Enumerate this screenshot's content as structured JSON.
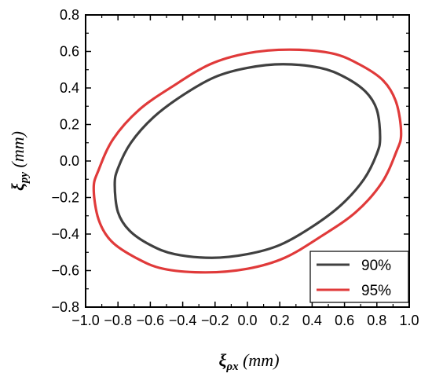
{
  "chart_data": {
    "type": "line",
    "title": "",
    "xlabel": {
      "symbol": "ξ",
      "subscript": "ρx",
      "unit": "(mm)"
    },
    "ylabel": {
      "symbol": "ξ",
      "subscript": "py",
      "unit": "(mm)"
    },
    "xlim": [
      -1.0,
      1.0
    ],
    "ylim": [
      -0.8,
      0.8
    ],
    "xticks": [
      "−1.0",
      "−0.8",
      "−0.6",
      "−0.4",
      "−0.2",
      "0.0",
      "0.2",
      "0.4",
      "0.6",
      "0.8",
      "1.0"
    ],
    "yticks": [
      "0.8",
      "0.6",
      "0.4",
      "0.2",
      "0.0",
      "−0.2",
      "−0.4",
      "−0.6",
      "−0.8"
    ],
    "grid": false,
    "legend_placement": "bottom-right",
    "series": [
      {
        "name": "90%",
        "color": "#404040",
        "shape": "ellipse",
        "center": [
          0.0,
          0.0
        ],
        "x_extent": [
          -0.82,
          0.82
        ],
        "y_extent": [
          -0.53,
          0.53
        ],
        "points": [
          [
            0.82,
            0.13
          ],
          [
            0.8,
            0.28
          ],
          [
            0.73,
            0.38
          ],
          [
            0.6,
            0.46
          ],
          [
            0.45,
            0.51
          ],
          [
            0.22,
            0.53
          ],
          [
            0.0,
            0.51
          ],
          [
            -0.2,
            0.46
          ],
          [
            -0.4,
            0.36
          ],
          [
            -0.58,
            0.24
          ],
          [
            -0.72,
            0.1
          ],
          [
            -0.8,
            -0.04
          ],
          [
            -0.82,
            -0.13
          ],
          [
            -0.8,
            -0.28
          ],
          [
            -0.73,
            -0.38
          ],
          [
            -0.6,
            -0.46
          ],
          [
            -0.45,
            -0.51
          ],
          [
            -0.22,
            -0.53
          ],
          [
            0.0,
            -0.51
          ],
          [
            0.2,
            -0.46
          ],
          [
            0.4,
            -0.36
          ],
          [
            0.58,
            -0.24
          ],
          [
            0.72,
            -0.1
          ],
          [
            0.8,
            0.04
          ]
        ]
      },
      {
        "name": "95%",
        "color": "#e03a3a",
        "shape": "ellipse",
        "center": [
          0.0,
          0.0
        ],
        "x_extent": [
          -0.95,
          0.95
        ],
        "y_extent": [
          -0.61,
          0.61
        ],
        "points": [
          [
            0.95,
            0.15
          ],
          [
            0.92,
            0.32
          ],
          [
            0.84,
            0.44
          ],
          [
            0.69,
            0.53
          ],
          [
            0.52,
            0.59
          ],
          [
            0.26,
            0.61
          ],
          [
            0.0,
            0.59
          ],
          [
            -0.23,
            0.53
          ],
          [
            -0.46,
            0.41
          ],
          [
            -0.67,
            0.28
          ],
          [
            -0.83,
            0.12
          ],
          [
            -0.92,
            -0.05
          ],
          [
            -0.95,
            -0.15
          ],
          [
            -0.92,
            -0.32
          ],
          [
            -0.84,
            -0.44
          ],
          [
            -0.69,
            -0.53
          ],
          [
            -0.52,
            -0.59
          ],
          [
            -0.26,
            -0.61
          ],
          [
            0.0,
            -0.59
          ],
          [
            0.23,
            -0.53
          ],
          [
            0.46,
            -0.41
          ],
          [
            0.67,
            -0.28
          ],
          [
            0.83,
            -0.12
          ],
          [
            0.92,
            0.05
          ]
        ]
      }
    ]
  }
}
